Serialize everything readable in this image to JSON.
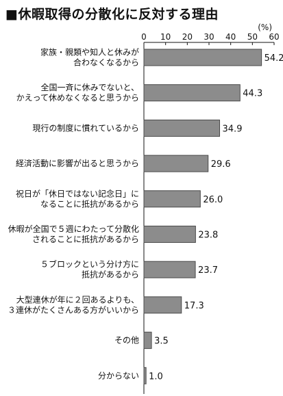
{
  "title_marker": "■",
  "chart_data": {
    "type": "bar",
    "orientation": "horizontal",
    "title": "休暇取得の分散化に反対する理由",
    "unit": "(%)",
    "xlim": [
      0,
      60
    ],
    "ticks": [
      0,
      10,
      20,
      30,
      40,
      50,
      60
    ],
    "categories": [
      [
        "家族・親類や知人と休みが",
        "合わなくなるから"
      ],
      [
        "全国一斉に休みでないと、",
        "かえって休めなくなると思うから"
      ],
      [
        "現行の制度に慣れているから"
      ],
      [
        "経済活動に影響が出ると思うから"
      ],
      [
        "祝日が「休日ではない記念日」に",
        "なることに抵抗があるから"
      ],
      [
        "休暇が全国で５週にわたって分散化",
        "されることに抵抗があるから"
      ],
      [
        "５ブロックという分け方に",
        "抵抗があるから"
      ],
      [
        "大型連休が年に２回あるよりも、",
        "３連休がたくさんある方がいいから"
      ],
      [
        "その他"
      ],
      [
        "分からない"
      ]
    ],
    "values": [
      54.2,
      44.3,
      34.9,
      29.6,
      26.0,
      23.8,
      23.7,
      17.3,
      3.5,
      1.0
    ],
    "value_labels": [
      "54.2",
      "44.3",
      "34.9",
      "29.6",
      "26.0",
      "23.8",
      "23.7",
      "17.3",
      "3.5",
      "1.0"
    ],
    "bar_color": "#8c8c8c",
    "bar_edge_color": "#4a4a4a",
    "grid": false,
    "legend": "none"
  }
}
